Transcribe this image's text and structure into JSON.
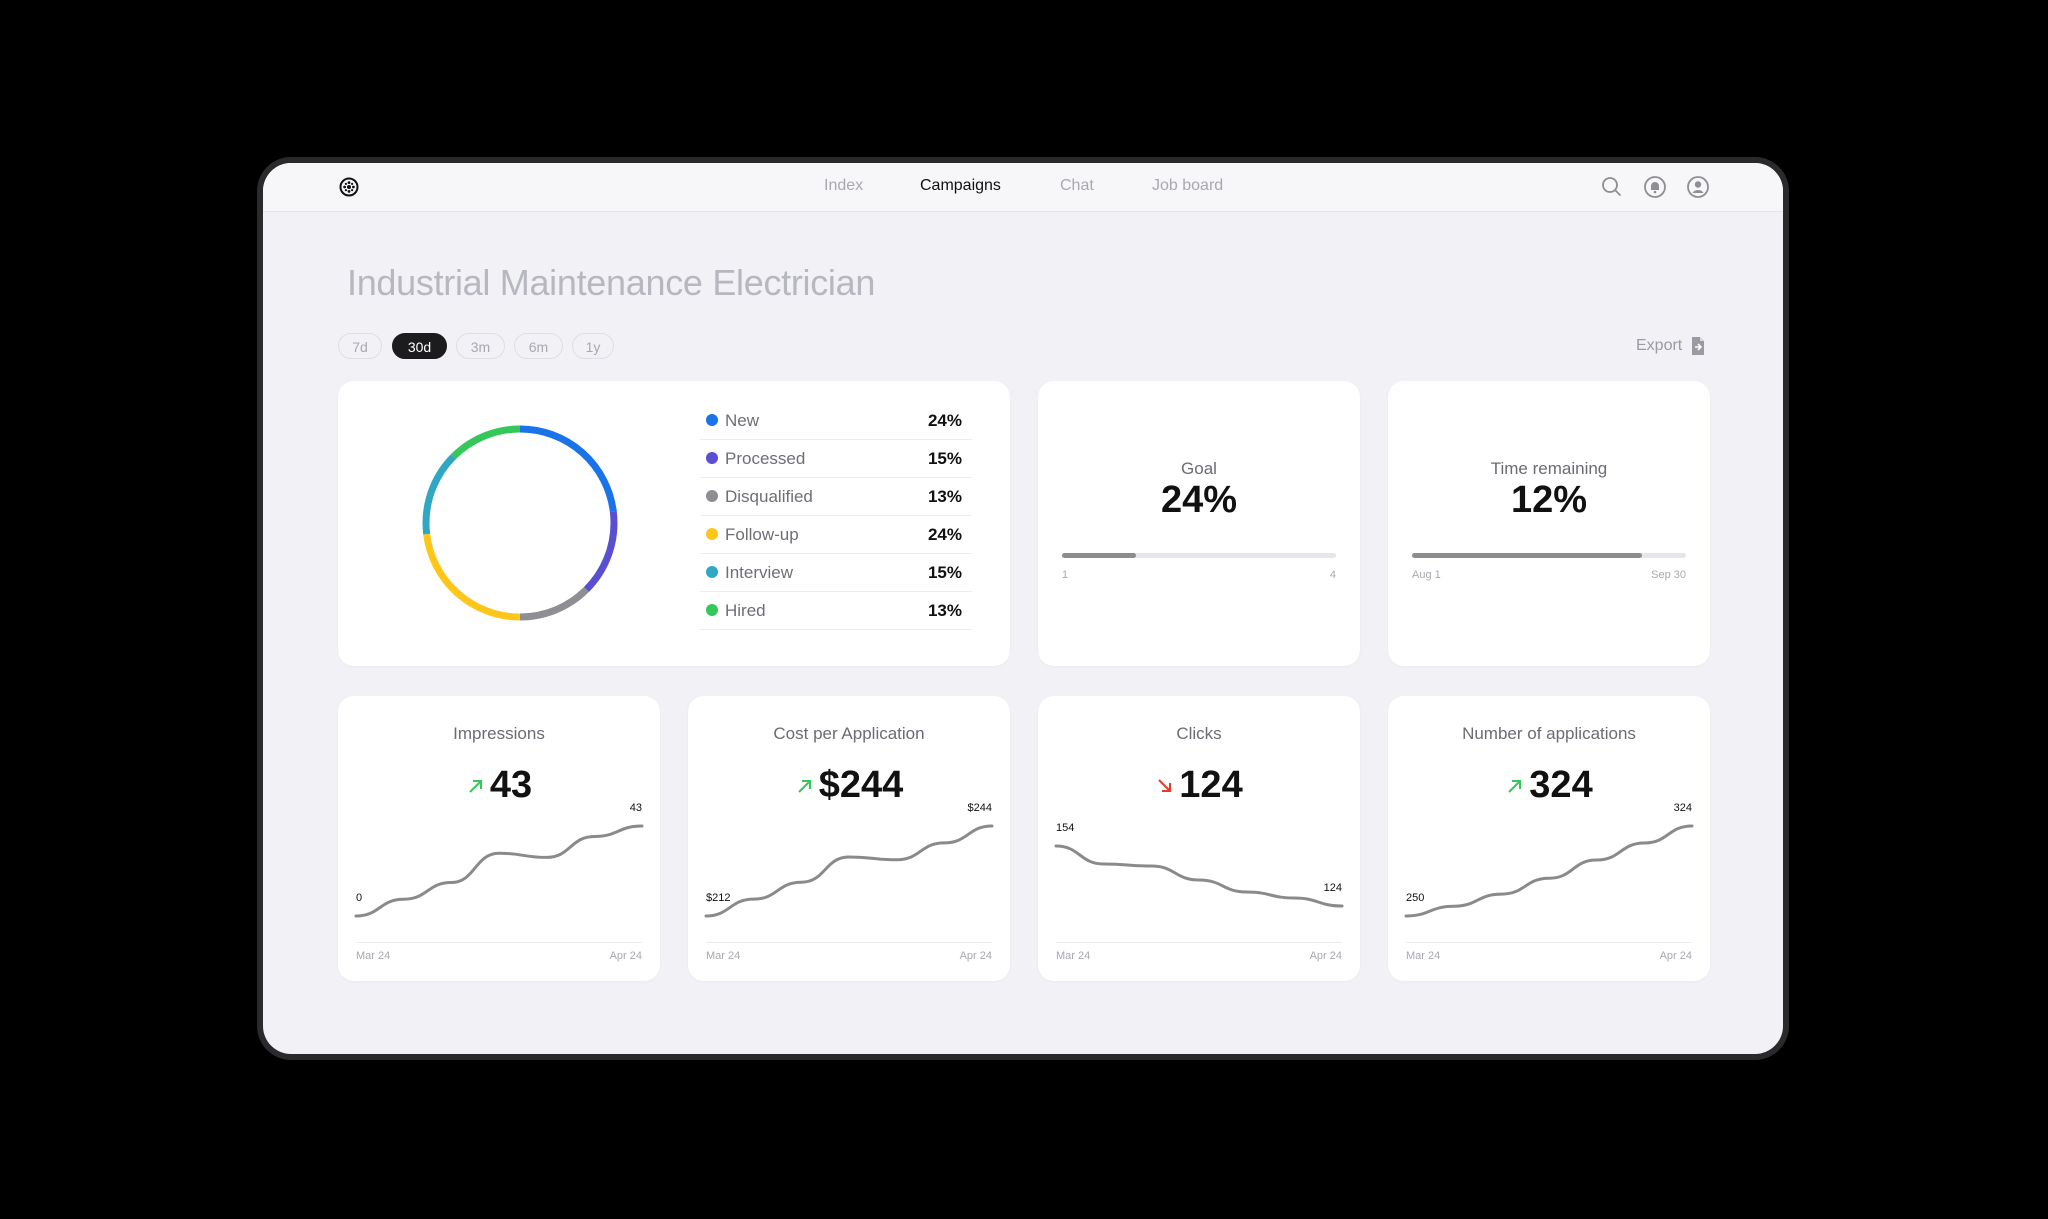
{
  "nav": {
    "items": [
      {
        "label": "Index",
        "active": false
      },
      {
        "label": "Campaigns",
        "active": true
      },
      {
        "label": "Chat",
        "active": false
      },
      {
        "label": "Job board",
        "active": false
      }
    ],
    "icons": [
      "search-icon",
      "bell-icon",
      "user-icon"
    ]
  },
  "page": {
    "title": "Industrial Maintenance Electrician",
    "ranges": [
      {
        "label": "7d",
        "active": false
      },
      {
        "label": "30d",
        "active": true
      },
      {
        "label": "3m",
        "active": false
      },
      {
        "label": "6m",
        "active": false
      },
      {
        "label": "1y",
        "active": false
      }
    ],
    "export_label": "Export"
  },
  "status_breakdown": {
    "items": [
      {
        "label": "New",
        "value": "24%",
        "color": "#1a73e8"
      },
      {
        "label": "Processed",
        "value": "15%",
        "color": "#5b4fd1"
      },
      {
        "label": "Disqualified",
        "value": "13%",
        "color": "#8e8e93"
      },
      {
        "label": "Follow-up",
        "value": "24%",
        "color": "#ffc61a"
      },
      {
        "label": "Interview",
        "value": "15%",
        "color": "#30a8c4"
      },
      {
        "label": "Hired",
        "value": "13%",
        "color": "#34c759"
      }
    ]
  },
  "goal": {
    "label": "Goal",
    "value": "24%",
    "progress": 0.27,
    "axis_start": "1",
    "axis_end": "4"
  },
  "time_remaining": {
    "label": "Time remaining",
    "value": "12%",
    "progress": 0.84,
    "axis_start": "Aug 1",
    "axis_end": "Sep 30"
  },
  "metrics": [
    {
      "label": "Impressions",
      "value": "43",
      "trend": "up",
      "start_label": "0",
      "end_label": "43",
      "x_start": "Mar 24",
      "x_end": "Apr 24",
      "series": [
        0,
        8,
        16,
        30,
        28,
        38,
        43
      ]
    },
    {
      "label": "Cost per Application",
      "value": "$244",
      "trend": "up",
      "start_label": "$212",
      "end_label": "$244",
      "x_start": "Mar 24",
      "x_end": "Apr 24",
      "series": [
        212,
        218,
        224,
        233,
        232,
        238,
        244
      ]
    },
    {
      "label": "Clicks",
      "value": "124",
      "trend": "down",
      "start_label": "154",
      "end_label": "124",
      "x_start": "Mar 24",
      "x_end": "Apr 24",
      "series": [
        154,
        145,
        144,
        137,
        131,
        128,
        124
      ]
    },
    {
      "label": "Number of applications",
      "value": "324",
      "trend": "up",
      "start_label": "250",
      "end_label": "324",
      "x_start": "Mar 24",
      "x_end": "Apr 24",
      "series": [
        250,
        258,
        268,
        281,
        296,
        310,
        324
      ]
    }
  ],
  "colors": {
    "up": "#34c759",
    "down": "#e5392b",
    "line": "#8a8a8a"
  }
}
